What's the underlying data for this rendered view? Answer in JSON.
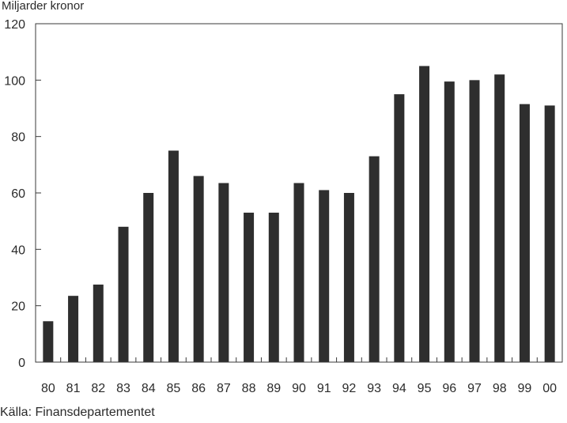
{
  "chart_data": {
    "type": "bar",
    "ylabel": "Miljarder kronor",
    "source": "Källa: Finansdepartementet",
    "categories": [
      "80",
      "81",
      "82",
      "83",
      "84",
      "85",
      "86",
      "87",
      "88",
      "89",
      "90",
      "91",
      "92",
      "93",
      "94",
      "95",
      "96",
      "97",
      "98",
      "99",
      "00"
    ],
    "values": [
      14.5,
      23.5,
      27.5,
      48,
      60,
      75,
      66,
      63.5,
      53,
      53,
      63.5,
      61,
      60,
      73,
      95,
      105,
      99.5,
      100,
      102,
      91.5,
      91
    ],
    "ylim": [
      0,
      120
    ],
    "yticks": [
      0,
      20,
      40,
      60,
      80,
      100,
      120
    ],
    "grid": false,
    "bar_color": "#2e2e2e",
    "axis_color": "#3a3a3a"
  }
}
